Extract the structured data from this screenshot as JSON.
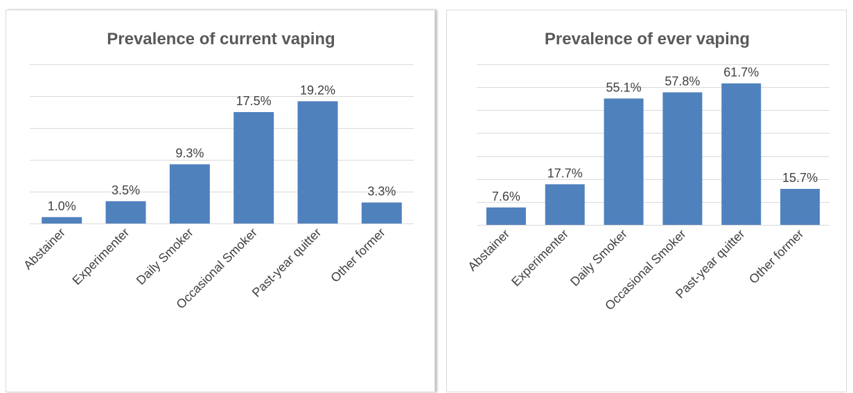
{
  "chart_data": [
    {
      "type": "bar",
      "title": "Prevalence of current vaping",
      "categories": [
        "Abstainer",
        "Experimenter",
        "Daily Smoker",
        "Occasional Smoker",
        "Past-year quitter",
        "Other former"
      ],
      "values": [
        1.0,
        3.5,
        9.3,
        17.5,
        19.2,
        3.3
      ],
      "data_labels": [
        "1.0%",
        "3.5%",
        "9.3%",
        "17.5%",
        "19.2%",
        "3.3%"
      ],
      "ylim": [
        0,
        25
      ],
      "grid_step": 5,
      "grid": true,
      "y_axis_labels_visible": false,
      "bar_color": "#4f81bd"
    },
    {
      "type": "bar",
      "title": "Prevalence of ever vaping",
      "categories": [
        "Abstainer",
        "Experimenter",
        "Daily Smoker",
        "Occasional Smoker",
        "Past-year quitter",
        "Other former"
      ],
      "values": [
        7.6,
        17.7,
        55.1,
        57.8,
        61.7,
        15.7
      ],
      "data_labels": [
        "7.6%",
        "17.7%",
        "55.1%",
        "57.8%",
        "61.7%",
        "15.7%"
      ],
      "ylim": [
        0,
        70
      ],
      "grid_step": 10,
      "grid": true,
      "y_axis_labels_visible": false,
      "bar_color": "#4f81bd"
    }
  ]
}
